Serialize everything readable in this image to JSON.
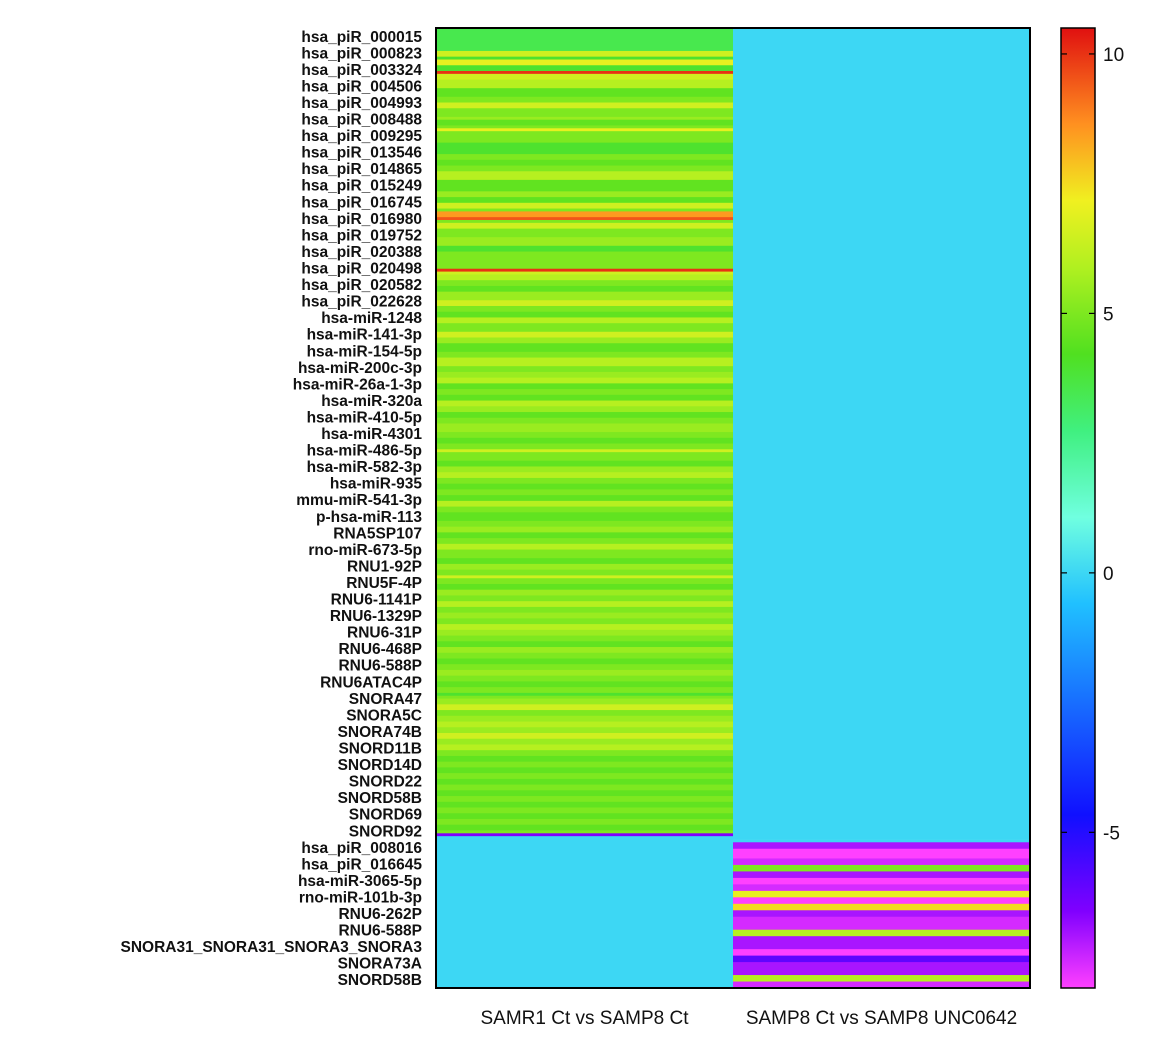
{
  "chart_data": {
    "type": "heatmap",
    "columns": [
      "SAMR1 Ct vs SAMP8 Ct",
      "SAMP8 Ct vs SAMP8 UNC0642"
    ],
    "row_labels": [
      "hsa_piR_000015",
      "hsa_piR_000823",
      "hsa_piR_003324",
      "hsa_piR_004506",
      "hsa_piR_004993",
      "hsa_piR_008488",
      "hsa_piR_009295",
      "hsa_piR_013546",
      "hsa_piR_014865",
      "hsa_piR_015249",
      "hsa_piR_016745",
      "hsa_piR_016980",
      "hsa_piR_019752",
      "hsa_piR_020388",
      "hsa_piR_020498",
      "hsa_piR_020582",
      "hsa_piR_022628",
      "hsa-miR-1248",
      "hsa-miR-141-3p",
      "hsa-miR-154-5p",
      "hsa-miR-200c-3p",
      "hsa-miR-26a-1-3p",
      "hsa-miR-320a",
      "hsa-miR-410-5p",
      "hsa-miR-4301",
      "hsa-miR-486-5p",
      "hsa-miR-582-3p",
      "hsa-miR-935",
      "mmu-miR-541-3p",
      "p-hsa-miR-113",
      "RNA5SP107",
      "rno-miR-673-5p",
      "RNU1-92P",
      "RNU5F-4P",
      "RNU6-1141P",
      "RNU6-1329P",
      "RNU6-31P",
      "RNU6-468P",
      "RNU6-588P",
      "RNU6ATAC4P",
      "SNORA47",
      "SNORA5C",
      "SNORA74B",
      "SNORD11B",
      "SNORD14D",
      "SNORD22",
      "SNORD58B",
      "SNORD69",
      "SNORD92",
      "hsa_piR_008016",
      "hsa_piR_016645",
      "hsa-miR-3065-5p",
      "rno-miR-101b-3p",
      "RNU6-262P",
      "RNU6-588P",
      "SNORA31_SNORA31_SNORA3_SNORA3",
      "SNORA73A",
      "SNORD58B"
    ],
    "stripes_col1": [
      [
        0,
        8,
        3.5
      ],
      [
        8,
        10,
        6.5
      ],
      [
        10,
        11,
        4
      ],
      [
        11,
        13,
        7
      ],
      [
        13,
        15,
        4
      ],
      [
        15,
        16,
        10
      ],
      [
        16,
        18,
        6.5
      ],
      [
        18,
        21,
        6
      ],
      [
        21,
        24,
        4.5
      ],
      [
        24,
        26,
        5
      ],
      [
        26,
        28,
        6.5
      ],
      [
        28,
        31,
        5
      ],
      [
        31,
        32,
        5.5
      ],
      [
        32,
        34,
        4.5
      ],
      [
        34,
        35,
        5
      ],
      [
        35,
        36,
        7
      ],
      [
        36,
        40,
        5
      ],
      [
        40,
        44,
        4
      ],
      [
        44,
        46,
        5
      ],
      [
        46,
        48,
        4.5
      ],
      [
        48,
        50,
        5
      ],
      [
        50,
        53,
        6
      ],
      [
        53,
        57,
        4.5
      ],
      [
        57,
        59,
        5.5
      ],
      [
        59,
        61,
        4.5
      ],
      [
        61,
        63,
        6.5
      ],
      [
        63,
        64,
        5
      ],
      [
        64,
        66,
        8.5
      ],
      [
        66,
        67,
        9.5
      ],
      [
        67,
        68,
        5
      ],
      [
        68,
        70,
        6.5
      ],
      [
        70,
        73,
        5
      ],
      [
        73,
        76,
        5.5
      ],
      [
        76,
        78,
        4
      ],
      [
        78,
        79,
        5
      ],
      [
        79,
        82,
        5
      ],
      [
        82,
        84,
        5
      ],
      [
        84,
        85,
        10
      ],
      [
        85,
        86,
        6.5
      ],
      [
        86,
        88,
        6
      ],
      [
        88,
        90,
        5
      ],
      [
        90,
        92,
        4.5
      ],
      [
        92,
        95,
        5.5
      ],
      [
        95,
        97,
        6.5
      ],
      [
        97,
        99,
        5
      ],
      [
        99,
        101,
        4.5
      ],
      [
        101,
        103,
        6
      ],
      [
        103,
        106,
        5
      ],
      [
        106,
        108,
        6.5
      ],
      [
        108,
        110,
        5.5
      ],
      [
        110,
        113,
        4.5
      ],
      [
        113,
        115,
        5
      ],
      [
        115,
        118,
        6
      ],
      [
        118,
        120,
        5
      ],
      [
        120,
        122,
        5.5
      ],
      [
        122,
        124,
        6
      ],
      [
        124,
        126,
        4.5
      ],
      [
        126,
        128,
        5
      ],
      [
        128,
        130,
        4.5
      ],
      [
        130,
        132,
        6
      ],
      [
        132,
        134,
        5.5
      ],
      [
        134,
        136,
        4.5
      ],
      [
        136,
        138,
        5
      ],
      [
        138,
        141,
        5.5
      ],
      [
        141,
        143,
        5
      ],
      [
        143,
        145,
        4.5
      ],
      [
        145,
        147,
        5
      ],
      [
        147,
        148,
        6.5
      ],
      [
        148,
        151,
        5
      ],
      [
        151,
        153,
        4.5
      ],
      [
        153,
        155,
        5.5
      ],
      [
        155,
        157,
        6
      ],
      [
        157,
        159,
        5
      ],
      [
        159,
        161,
        4.5
      ],
      [
        161,
        163,
        5
      ],
      [
        163,
        165,
        4.5
      ],
      [
        165,
        167,
        6
      ],
      [
        167,
        169,
        5
      ],
      [
        169,
        172,
        4.5
      ],
      [
        172,
        174,
        5
      ],
      [
        174,
        176,
        5.5
      ],
      [
        176,
        178,
        4.5
      ],
      [
        178,
        180,
        5
      ],
      [
        180,
        182,
        6
      ],
      [
        182,
        185,
        5
      ],
      [
        185,
        187,
        4.5
      ],
      [
        187,
        189,
        5.5
      ],
      [
        189,
        191,
        5
      ],
      [
        191,
        192,
        6.5
      ],
      [
        192,
        194,
        5
      ],
      [
        194,
        196,
        4.5
      ],
      [
        196,
        198,
        5.5
      ],
      [
        198,
        200,
        5
      ],
      [
        200,
        202,
        6
      ],
      [
        202,
        204,
        5
      ],
      [
        204,
        206,
        5.5
      ],
      [
        206,
        208,
        5
      ],
      [
        208,
        210,
        6
      ],
      [
        210,
        212,
        5.5
      ],
      [
        212,
        214,
        5
      ],
      [
        214,
        216,
        4.5
      ],
      [
        216,
        218,
        5.5
      ],
      [
        218,
        220,
        5
      ],
      [
        220,
        222,
        4.5
      ],
      [
        222,
        224,
        5
      ],
      [
        224,
        226,
        5.5
      ],
      [
        226,
        228,
        5
      ],
      [
        228,
        230,
        4.5
      ],
      [
        230,
        232,
        5
      ],
      [
        232,
        233,
        4
      ],
      [
        233,
        234,
        5
      ],
      [
        234,
        236,
        5.5
      ],
      [
        236,
        238,
        6.5
      ],
      [
        238,
        240,
        5
      ],
      [
        240,
        242,
        5.5
      ],
      [
        242,
        244,
        6
      ],
      [
        244,
        246,
        5.5
      ],
      [
        246,
        248,
        6.5
      ],
      [
        248,
        250,
        5.5
      ],
      [
        250,
        252,
        6
      ],
      [
        252,
        254,
        5
      ],
      [
        254,
        256,
        4.5
      ],
      [
        256,
        258,
        5
      ],
      [
        258,
        260,
        4.5
      ],
      [
        260,
        262,
        5
      ],
      [
        262,
        264,
        4.5
      ],
      [
        264,
        266,
        5
      ],
      [
        266,
        268,
        4.5
      ],
      [
        268,
        270,
        5
      ],
      [
        270,
        272,
        4.5
      ],
      [
        272,
        274,
        5
      ],
      [
        274,
        276,
        4.5
      ],
      [
        276,
        278,
        5
      ],
      [
        278,
        280,
        4.5
      ],
      [
        280,
        281,
        5
      ],
      [
        281,
        282,
        -6.5
      ],
      [
        282,
        283,
        0
      ]
    ],
    "col1_bottom_value": 0,
    "stripes_col2": [
      [
        0,
        0.5,
        0
      ],
      [
        0.5,
        1.5,
        -7
      ],
      [
        1.5,
        3,
        -8
      ],
      [
        3,
        4,
        -7.5
      ],
      [
        4,
        5,
        5
      ],
      [
        5,
        6,
        -7
      ],
      [
        6,
        7,
        -8.5
      ],
      [
        7,
        8,
        -7.5
      ],
      [
        8,
        9,
        7
      ],
      [
        9,
        10,
        -8
      ],
      [
        10,
        11,
        7.5
      ],
      [
        11,
        12,
        -7
      ],
      [
        12,
        14,
        -7.5
      ],
      [
        14,
        15,
        6
      ],
      [
        15,
        17,
        -7
      ],
      [
        17,
        18,
        -8
      ],
      [
        18,
        19,
        -6
      ],
      [
        19,
        21,
        -7
      ],
      [
        21,
        22,
        6
      ],
      [
        22,
        23,
        -7.5
      ]
    ],
    "col2_top_value": 0,
    "colorbar": {
      "min": -8,
      "max": 10.5,
      "ticks": [
        10,
        5,
        0,
        -5
      ],
      "tick_labels": [
        "10",
        "5",
        "0",
        "-5"
      ]
    }
  }
}
